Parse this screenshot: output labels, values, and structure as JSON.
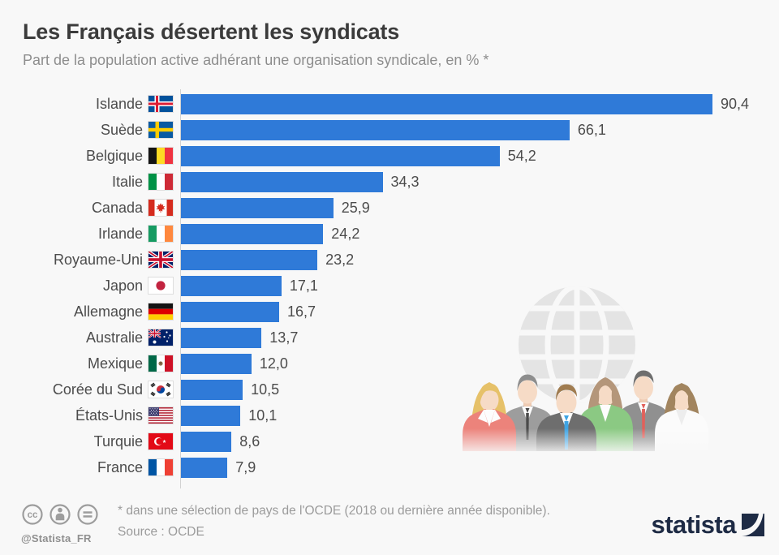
{
  "header": {
    "title": "Les Français désertent les syndicats",
    "subtitle": "Part de la population active adhérant une organisation syndicale, en % *"
  },
  "chart_data": {
    "type": "bar",
    "orientation": "horizontal",
    "unit": "%",
    "title": "Les Français désertent les syndicats",
    "xlabel": "",
    "ylabel": "",
    "xlim": [
      0,
      100
    ],
    "grid": false,
    "legend": false,
    "bar_color": "#2f7ad8",
    "categories": [
      "Islande",
      "Suède",
      "Belgique",
      "Italie",
      "Canada",
      "Irlande",
      "Royaume-Uni",
      "Japon",
      "Allemagne",
      "Australie",
      "Mexique",
      "Corée du Sud",
      "États-Unis",
      "Turquie",
      "France"
    ],
    "values": [
      90.4,
      66.1,
      54.2,
      34.3,
      25.9,
      24.2,
      23.2,
      17.1,
      16.7,
      13.7,
      12.0,
      10.5,
      10.1,
      8.6,
      7.9
    ],
    "value_labels": [
      "90,4",
      "66,1",
      "54,2",
      "34,3",
      "25,9",
      "24,2",
      "23,2",
      "17,1",
      "16,7",
      "13,7",
      "12,0",
      "10,5",
      "10,1",
      "8,6",
      "7,9"
    ],
    "flags": [
      "iceland",
      "sweden",
      "belgium",
      "italy",
      "canada",
      "ireland",
      "united-kingdom",
      "japan",
      "germany",
      "australia",
      "mexico",
      "south-korea",
      "united-states",
      "turkey",
      "france"
    ]
  },
  "illustration": {
    "icons": [
      "globe-icon",
      "business-people-icon"
    ]
  },
  "footer": {
    "license_icons": [
      "cc-icon",
      "attribution-person-icon",
      "no-derivatives-equals-icon"
    ],
    "handle": "@Statista_FR",
    "footnote": "* dans une sélection de pays de l'OCDE (2018 ou dernière année disponible).",
    "source": "Source : OCDE",
    "brand": "statista"
  }
}
